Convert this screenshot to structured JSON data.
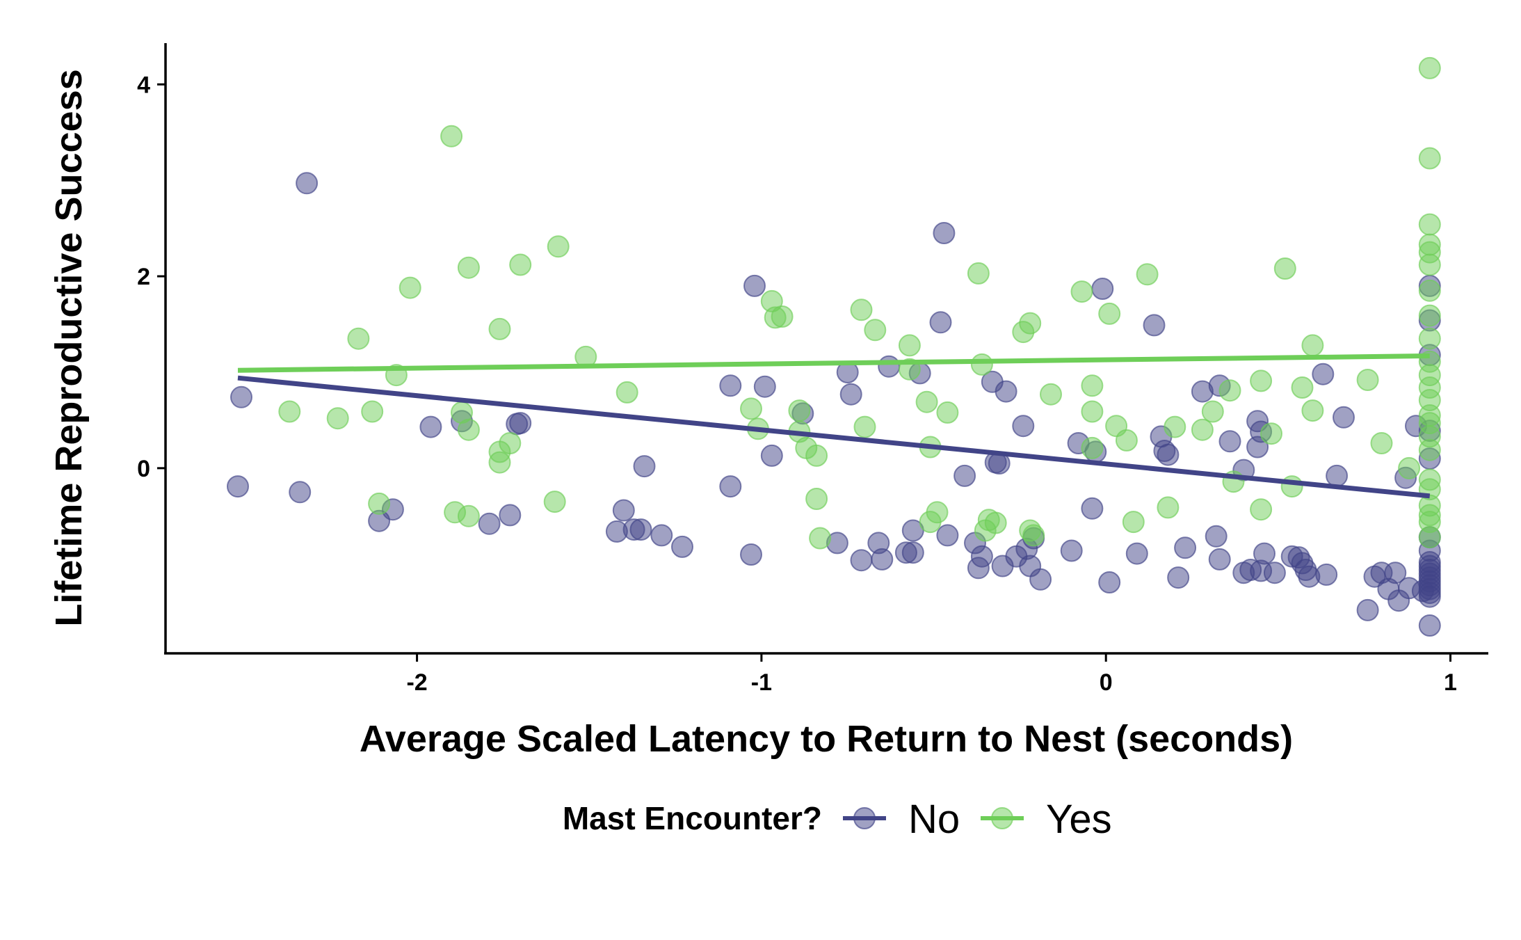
{
  "chart_data": {
    "type": "scatter",
    "title": "",
    "xlabel": "Average Scaled Latency to Return to Nest (seconds)",
    "ylabel": "Lifetime Reproductive Success",
    "xlim": [
      -2.73,
      1.11
    ],
    "ylim": [
      -1.93,
      4.43
    ],
    "x_ticks": [
      -2,
      -1,
      0,
      1
    ],
    "y_ticks": [
      0,
      2,
      4
    ],
    "grid": false,
    "legend": {
      "title": "Mast Encounter?",
      "placement": "bottom"
    },
    "series": [
      {
        "name": "No",
        "color": "#414487",
        "trend": {
          "x": [
            -2.52,
            0.94
          ],
          "y": [
            0.94,
            -0.29
          ]
        },
        "points": [
          [
            -2.52,
            -0.19
          ],
          [
            -2.51,
            0.74
          ],
          [
            -2.34,
            -0.25
          ],
          [
            -2.32,
            2.97
          ],
          [
            -2.11,
            -0.55
          ],
          [
            -2.07,
            -0.43
          ],
          [
            -1.96,
            0.43
          ],
          [
            -1.87,
            0.49
          ],
          [
            -1.79,
            -0.58
          ],
          [
            -1.73,
            -0.49
          ],
          [
            -1.71,
            0.46
          ],
          [
            -1.7,
            0.47
          ],
          [
            -1.42,
            -0.66
          ],
          [
            -1.4,
            -0.44
          ],
          [
            -1.37,
            -0.64
          ],
          [
            -1.35,
            -0.64
          ],
          [
            -1.34,
            0.02
          ],
          [
            -1.29,
            -0.7
          ],
          [
            -1.23,
            -0.82
          ],
          [
            -1.09,
            0.86
          ],
          [
            -1.09,
            -0.19
          ],
          [
            -1.03,
            -0.9
          ],
          [
            -1.02,
            1.9
          ],
          [
            -0.99,
            0.85
          ],
          [
            -0.97,
            0.13
          ],
          [
            -0.88,
            0.57
          ],
          [
            -0.78,
            -0.78
          ],
          [
            -0.75,
            1.0
          ],
          [
            -0.74,
            0.77
          ],
          [
            -0.71,
            -0.96
          ],
          [
            -0.66,
            -0.78
          ],
          [
            -0.65,
            -0.95
          ],
          [
            -0.63,
            1.06
          ],
          [
            -0.58,
            -0.88
          ],
          [
            -0.56,
            -0.88
          ],
          [
            -0.56,
            -0.65
          ],
          [
            -0.54,
            0.99
          ],
          [
            -0.48,
            1.52
          ],
          [
            -0.47,
            2.45
          ],
          [
            -0.46,
            -0.7
          ],
          [
            -0.41,
            -0.08
          ],
          [
            -0.38,
            -0.78
          ],
          [
            -0.37,
            -1.04
          ],
          [
            -0.36,
            -0.92
          ],
          [
            -0.33,
            0.9
          ],
          [
            -0.32,
            0.06
          ],
          [
            -0.31,
            0.05
          ],
          [
            -0.3,
            -1.02
          ],
          [
            -0.29,
            0.8
          ],
          [
            -0.26,
            -0.92
          ],
          [
            -0.24,
            0.44
          ],
          [
            -0.23,
            -0.84
          ],
          [
            -0.22,
            -1.02
          ],
          [
            -0.21,
            -0.73
          ],
          [
            -0.19,
            -1.16
          ],
          [
            -0.1,
            -0.86
          ],
          [
            -0.08,
            0.26
          ],
          [
            -0.04,
            -0.42
          ],
          [
            -0.03,
            0.17
          ],
          [
            -0.01,
            1.87
          ],
          [
            0.01,
            -1.19
          ],
          [
            0.09,
            -0.89
          ],
          [
            0.14,
            1.49
          ],
          [
            0.16,
            0.33
          ],
          [
            0.17,
            0.18
          ],
          [
            0.18,
            0.14
          ],
          [
            0.21,
            -1.14
          ],
          [
            0.23,
            -0.83
          ],
          [
            0.28,
            0.8
          ],
          [
            0.32,
            -0.71
          ],
          [
            0.33,
            0.86
          ],
          [
            0.33,
            -0.95
          ],
          [
            0.36,
            0.28
          ],
          [
            0.4,
            -0.02
          ],
          [
            0.4,
            -1.09
          ],
          [
            0.42,
            -1.06
          ],
          [
            0.44,
            0.22
          ],
          [
            0.44,
            0.49
          ],
          [
            0.45,
            -1.07
          ],
          [
            0.45,
            0.38
          ],
          [
            0.46,
            -0.89
          ],
          [
            0.49,
            -1.09
          ],
          [
            0.54,
            -0.92
          ],
          [
            0.56,
            -0.93
          ],
          [
            0.57,
            -0.99
          ],
          [
            0.58,
            -1.06
          ],
          [
            0.59,
            -1.13
          ],
          [
            0.63,
            0.98
          ],
          [
            0.64,
            -1.11
          ],
          [
            0.67,
            -0.08
          ],
          [
            0.69,
            0.53
          ],
          [
            0.76,
            -1.48
          ],
          [
            0.78,
            -1.13
          ],
          [
            0.8,
            -1.09
          ],
          [
            0.82,
            -1.26
          ],
          [
            0.84,
            -1.09
          ],
          [
            0.85,
            -1.38
          ],
          [
            0.87,
            -0.1
          ],
          [
            0.88,
            -1.25
          ],
          [
            0.9,
            0.44
          ],
          [
            0.92,
            -1.28
          ],
          [
            0.94,
            1.9
          ],
          [
            0.94,
            1.54
          ],
          [
            0.94,
            1.18
          ],
          [
            0.94,
            0.39
          ],
          [
            0.94,
            0.1
          ],
          [
            0.94,
            -0.72
          ],
          [
            0.94,
            -0.86
          ],
          [
            0.94,
            -0.98
          ],
          [
            0.94,
            -1.02
          ],
          [
            0.94,
            -1.06
          ],
          [
            0.94,
            -1.1
          ],
          [
            0.94,
            -1.14
          ],
          [
            0.94,
            -1.18
          ],
          [
            0.94,
            -1.22
          ],
          [
            0.94,
            -1.26
          ],
          [
            0.94,
            -1.3
          ],
          [
            0.94,
            -1.34
          ],
          [
            0.94,
            -1.64
          ]
        ]
      },
      {
        "name": "Yes",
        "color": "#6ECE58",
        "trend": {
          "x": [
            -2.52,
            0.94
          ],
          "y": [
            1.02,
            1.17
          ]
        },
        "points": [
          [
            -2.37,
            0.59
          ],
          [
            -2.23,
            0.52
          ],
          [
            -2.17,
            1.35
          ],
          [
            -2.13,
            0.59
          ],
          [
            -2.11,
            -0.37
          ],
          [
            -2.06,
            0.97
          ],
          [
            -2.02,
            1.88
          ],
          [
            -1.9,
            3.46
          ],
          [
            -1.89,
            -0.46
          ],
          [
            -1.87,
            0.58
          ],
          [
            -1.85,
            -0.5
          ],
          [
            -1.85,
            0.4
          ],
          [
            -1.85,
            2.09
          ],
          [
            -1.76,
            1.45
          ],
          [
            -1.76,
            0.06
          ],
          [
            -1.76,
            0.17
          ],
          [
            -1.73,
            0.26
          ],
          [
            -1.7,
            2.12
          ],
          [
            -1.6,
            -0.35
          ],
          [
            -1.59,
            2.31
          ],
          [
            -1.51,
            1.16
          ],
          [
            -1.39,
            0.79
          ],
          [
            -1.03,
            0.62
          ],
          [
            -1.01,
            0.41
          ],
          [
            -0.97,
            1.74
          ],
          [
            -0.96,
            1.57
          ],
          [
            -0.94,
            1.58
          ],
          [
            -0.89,
            0.6
          ],
          [
            -0.89,
            0.38
          ],
          [
            -0.87,
            0.21
          ],
          [
            -0.84,
            0.13
          ],
          [
            -0.84,
            -0.32
          ],
          [
            -0.83,
            -0.73
          ],
          [
            -0.71,
            1.65
          ],
          [
            -0.7,
            0.43
          ],
          [
            -0.67,
            1.44
          ],
          [
            -0.57,
            1.03
          ],
          [
            -0.57,
            1.28
          ],
          [
            -0.52,
            0.69
          ],
          [
            -0.51,
            0.22
          ],
          [
            -0.51,
            -0.56
          ],
          [
            -0.49,
            -0.46
          ],
          [
            -0.46,
            0.58
          ],
          [
            -0.37,
            2.03
          ],
          [
            -0.36,
            1.08
          ],
          [
            -0.35,
            -0.65
          ],
          [
            -0.34,
            -0.54
          ],
          [
            -0.32,
            -0.57
          ],
          [
            -0.24,
            1.42
          ],
          [
            -0.22,
            -0.65
          ],
          [
            -0.22,
            1.51
          ],
          [
            -0.21,
            -0.7
          ],
          [
            -0.16,
            0.77
          ],
          [
            -0.07,
            1.84
          ],
          [
            -0.04,
            0.21
          ],
          [
            -0.04,
            0.59
          ],
          [
            -0.04,
            0.86
          ],
          [
            0.01,
            1.61
          ],
          [
            0.03,
            0.44
          ],
          [
            0.06,
            0.29
          ],
          [
            0.08,
            -0.56
          ],
          [
            0.12,
            2.02
          ],
          [
            0.18,
            -0.41
          ],
          [
            0.2,
            0.43
          ],
          [
            0.28,
            0.4
          ],
          [
            0.31,
            0.59
          ],
          [
            0.36,
            0.81
          ],
          [
            0.37,
            -0.14
          ],
          [
            0.45,
            0.91
          ],
          [
            0.45,
            -0.43
          ],
          [
            0.48,
            0.36
          ],
          [
            0.52,
            2.08
          ],
          [
            0.54,
            -0.19
          ],
          [
            0.57,
            0.84
          ],
          [
            0.6,
            1.28
          ],
          [
            0.6,
            0.6
          ],
          [
            0.76,
            0.92
          ],
          [
            0.8,
            0.26
          ],
          [
            0.88,
            0.0
          ],
          [
            0.94,
            4.17
          ],
          [
            0.94,
            3.23
          ],
          [
            0.94,
            2.54
          ],
          [
            0.94,
            2.33
          ],
          [
            0.94,
            2.25
          ],
          [
            0.94,
            2.12
          ],
          [
            0.94,
            1.85
          ],
          [
            0.94,
            1.59
          ],
          [
            0.94,
            1.35
          ],
          [
            0.94,
            1.11
          ],
          [
            0.94,
            0.97
          ],
          [
            0.94,
            0.84
          ],
          [
            0.94,
            0.71
          ],
          [
            0.94,
            0.55
          ],
          [
            0.94,
            0.47
          ],
          [
            0.94,
            0.33
          ],
          [
            0.94,
            0.19
          ],
          [
            0.94,
            -0.12
          ],
          [
            0.94,
            -0.22
          ],
          [
            0.94,
            -0.39
          ],
          [
            0.94,
            -0.49
          ],
          [
            0.94,
            -0.56
          ],
          [
            0.94,
            -0.72
          ]
        ]
      }
    ]
  }
}
